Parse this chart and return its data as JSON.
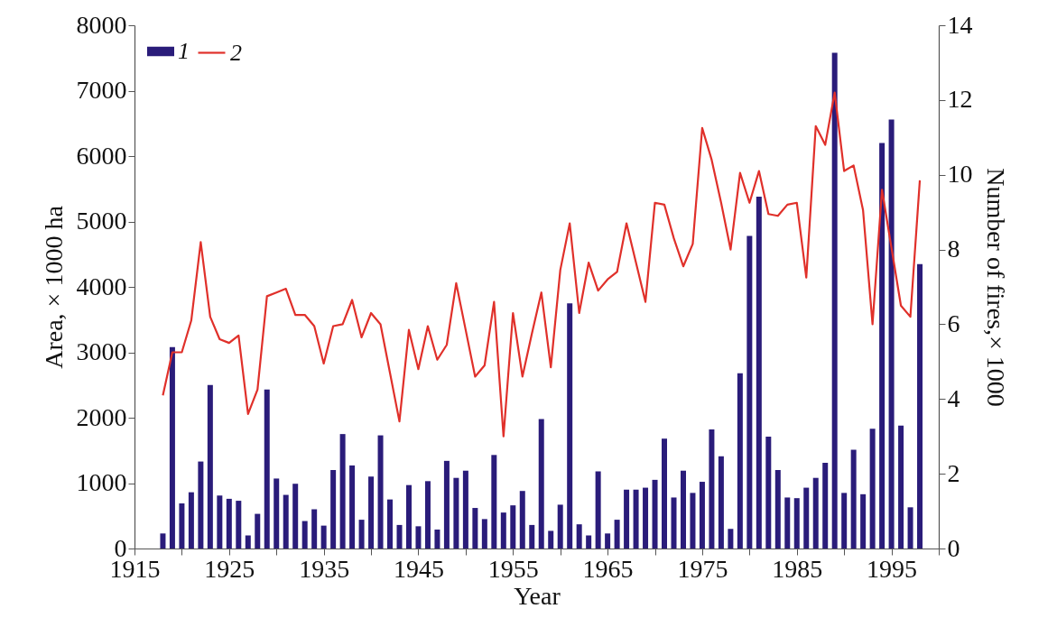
{
  "chart_data": {
    "type": "bar",
    "xlabel": "Year",
    "ylabel": "Area, × 1000 ha",
    "y2label": "Number of fires,× 1000",
    "x": [
      1918,
      1919,
      1920,
      1921,
      1922,
      1923,
      1924,
      1925,
      1926,
      1927,
      1928,
      1929,
      1930,
      1931,
      1932,
      1933,
      1934,
      1935,
      1936,
      1937,
      1938,
      1939,
      1940,
      1941,
      1942,
      1943,
      1944,
      1945,
      1946,
      1947,
      1948,
      1949,
      1950,
      1951,
      1952,
      1953,
      1954,
      1955,
      1956,
      1957,
      1958,
      1959,
      1960,
      1961,
      1962,
      1963,
      1964,
      1965,
      1966,
      1967,
      1968,
      1969,
      1970,
      1971,
      1972,
      1973,
      1974,
      1975,
      1976,
      1977,
      1978,
      1979,
      1980,
      1981,
      1982,
      1983,
      1984,
      1985,
      1986,
      1987,
      1988,
      1989,
      1990,
      1991,
      1992,
      1993,
      1994,
      1995,
      1996,
      1997,
      1998
    ],
    "xlim": [
      1915,
      2000
    ],
    "xticks": [
      1915,
      {
        "value": 1920,
        "label": null
      },
      1925,
      {
        "value": 1930,
        "label": null
      },
      1935,
      {
        "value": 1940,
        "label": null
      },
      1945,
      {
        "value": 1950,
        "label": null
      },
      1955,
      {
        "value": 1960,
        "label": null
      },
      1965,
      {
        "value": 1970,
        "label": null
      },
      1975,
      {
        "value": 1980,
        "label": null
      },
      1985,
      {
        "value": 1990,
        "label": null
      },
      1995,
      {
        "value": 2000,
        "label": null
      }
    ],
    "ylim": [
      0,
      8000
    ],
    "yticks": [
      0,
      1000,
      2000,
      3000,
      4000,
      5000,
      6000,
      7000,
      8000
    ],
    "y2lim": [
      0,
      14
    ],
    "y2ticks": [
      0,
      2,
      4,
      6,
      8,
      10,
      12,
      14
    ],
    "legend": "top left",
    "series": [
      {
        "name": "1",
        "color": "#2a1c7a",
        "values": [
          230,
          3080,
          690,
          860,
          1330,
          2500,
          810,
          760,
          730,
          200,
          530,
          2430,
          1070,
          820,
          990,
          420,
          600,
          350,
          1200,
          1750,
          1270,
          440,
          1100,
          1730,
          750,
          360,
          970,
          340,
          1030,
          290,
          1340,
          1080,
          1190,
          620,
          450,
          1430,
          550,
          660,
          880,
          360,
          1980,
          270,
          670,
          3750,
          370,
          200,
          1180,
          230,
          440,
          900,
          900,
          930,
          1050,
          1680,
          780,
          1190,
          850,
          1020,
          1820,
          1410,
          300,
          2680,
          4780,
          5380,
          1710,
          1200,
          780,
          770,
          930,
          1080,
          1310,
          7580,
          850,
          1510,
          830,
          1830,
          6200,
          6560,
          1880,
          630,
          4350
        ]
      },
      {
        "name": "2",
        "type": "line",
        "axis": "y2",
        "color": "#e0302a",
        "values": [
          4.1,
          5.25,
          5.25,
          6.1,
          8.2,
          6.2,
          5.6,
          5.5,
          5.7,
          3.6,
          4.25,
          6.75,
          6.85,
          6.95,
          6.25,
          6.25,
          5.95,
          4.95,
          5.95,
          6.0,
          6.65,
          5.65,
          6.3,
          6.0,
          4.7,
          3.4,
          5.85,
          4.8,
          5.95,
          5.05,
          5.45,
          7.1,
          5.85,
          4.6,
          4.9,
          6.6,
          3.0,
          6.3,
          4.6,
          5.75,
          6.85,
          4.85,
          7.45,
          8.7,
          6.3,
          7.65,
          6.9,
          7.2,
          7.4,
          8.7,
          7.65,
          6.6,
          9.25,
          9.2,
          8.3,
          7.55,
          8.15,
          11.25,
          10.4,
          9.25,
          8.0,
          10.05,
          9.25,
          10.1,
          8.95,
          8.9,
          9.2,
          9.25,
          7.25,
          11.3,
          10.8,
          12.2,
          10.1,
          10.25,
          9.05,
          6.0,
          9.6,
          8.05,
          6.5,
          6.2,
          9.85
        ]
      }
    ]
  }
}
